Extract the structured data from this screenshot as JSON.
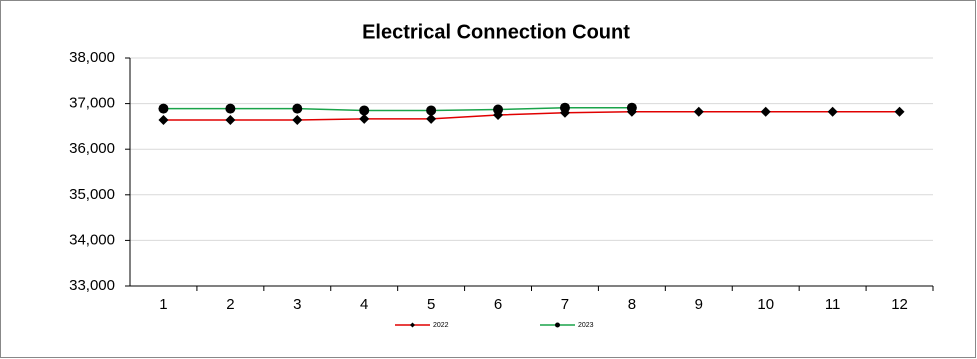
{
  "chart_data": {
    "type": "line",
    "title": "Electrical Connection Count",
    "categories": [
      "1",
      "2",
      "3",
      "4",
      "5",
      "6",
      "7",
      "8",
      "9",
      "10",
      "11",
      "12"
    ],
    "series": [
      {
        "name": "2022",
        "color": "#e00000",
        "marker": "diamond",
        "values": [
          36640,
          36640,
          36640,
          36665,
          36665,
          36750,
          36800,
          36820,
          36820,
          36820,
          36820,
          36820
        ]
      },
      {
        "name": "2023",
        "color": "#1aa34a",
        "marker": "circle",
        "values": [
          36890,
          36890,
          36890,
          36850,
          36850,
          36870,
          36910,
          36910,
          null,
          null,
          null,
          null
        ]
      }
    ],
    "ylim": [
      33000,
      38000
    ],
    "yticks": [
      {
        "value": 33000,
        "label": "33,000"
      },
      {
        "value": 34000,
        "label": "34,000"
      },
      {
        "value": 35000,
        "label": "35,000"
      },
      {
        "value": 36000,
        "label": "36,000"
      },
      {
        "value": 37000,
        "label": "37,000"
      },
      {
        "value": 38000,
        "label": "38,000"
      }
    ],
    "grid": true,
    "legend": "bottom"
  }
}
